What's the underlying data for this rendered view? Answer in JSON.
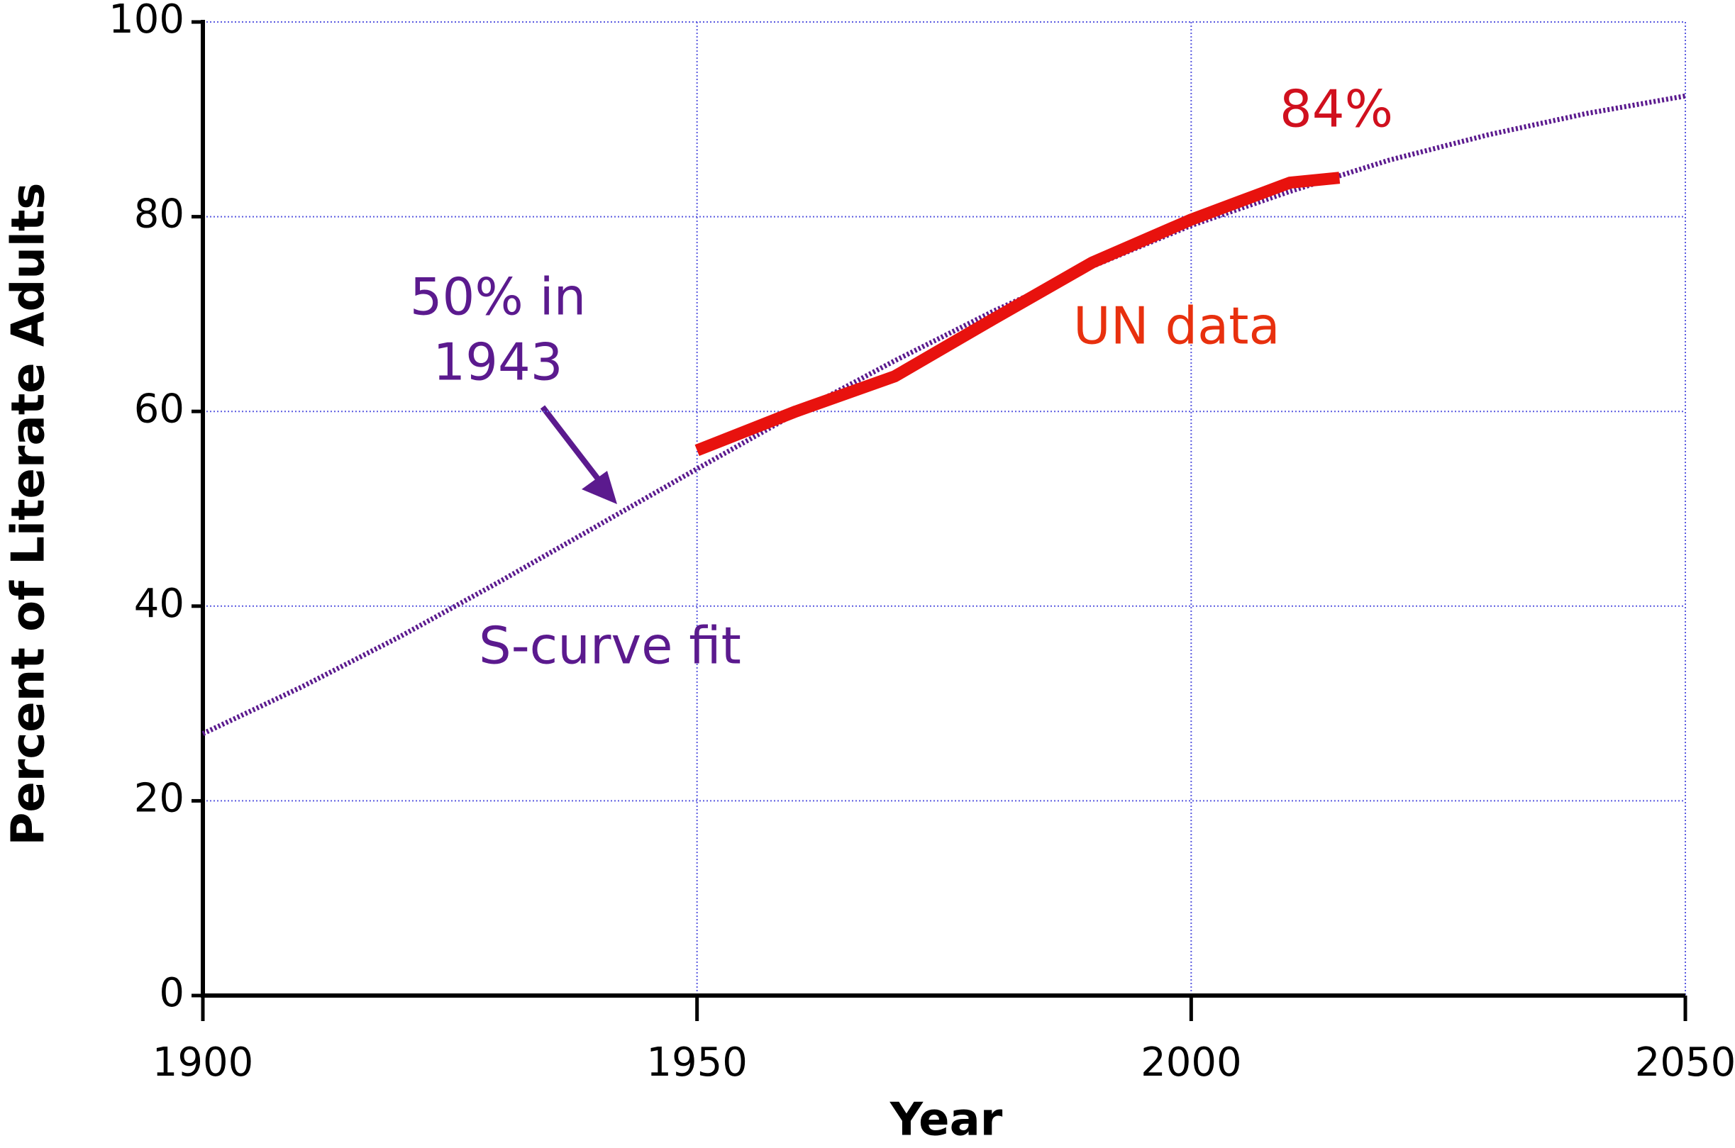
{
  "chart_data": {
    "type": "line",
    "xlabel": "Year",
    "ylabel": "Percent of Literate Adults",
    "xlim": [
      1900,
      2050
    ],
    "xticks": [
      1900,
      1950,
      2000,
      2050
    ],
    "ylim": [
      0,
      100
    ],
    "yticks": [
      0,
      20,
      40,
      60,
      80,
      100
    ],
    "grid": true,
    "series": [
      {
        "name": "S-curve fit",
        "color": "#5b1a8e",
        "style": "dotted",
        "x": [
          1900,
          1910,
          1920,
          1930,
          1940,
          1950,
          1960,
          1970,
          1980,
          1990,
          2000,
          2010,
          2020,
          2030,
          2040,
          2050
        ],
        "values": [
          26.9,
          31.7,
          36.9,
          42.5,
          48.3,
          54.1,
          59.8,
          65.2,
          70.3,
          74.9,
          79.1,
          82.6,
          85.8,
          88.4,
          90.6,
          92.4
        ]
      },
      {
        "name": "UN data",
        "color": "#e8120e",
        "style": "solid",
        "x": [
          1950,
          1960,
          1970,
          1980,
          1990,
          2000,
          2005,
          2010,
          2015
        ],
        "values": [
          56,
          60,
          63.6,
          69.5,
          75.3,
          79.7,
          81.6,
          83.5,
          84
        ]
      }
    ],
    "annotations": [
      {
        "lines": [
          "50% in",
          "1943"
        ],
        "color": "#5b1a8e"
      },
      {
        "text": "UN data",
        "color": "#e8300e"
      },
      {
        "text": "S-curve fit",
        "color": "#5b1a8e"
      },
      {
        "text": "84%",
        "color": "#d0101e"
      }
    ]
  }
}
